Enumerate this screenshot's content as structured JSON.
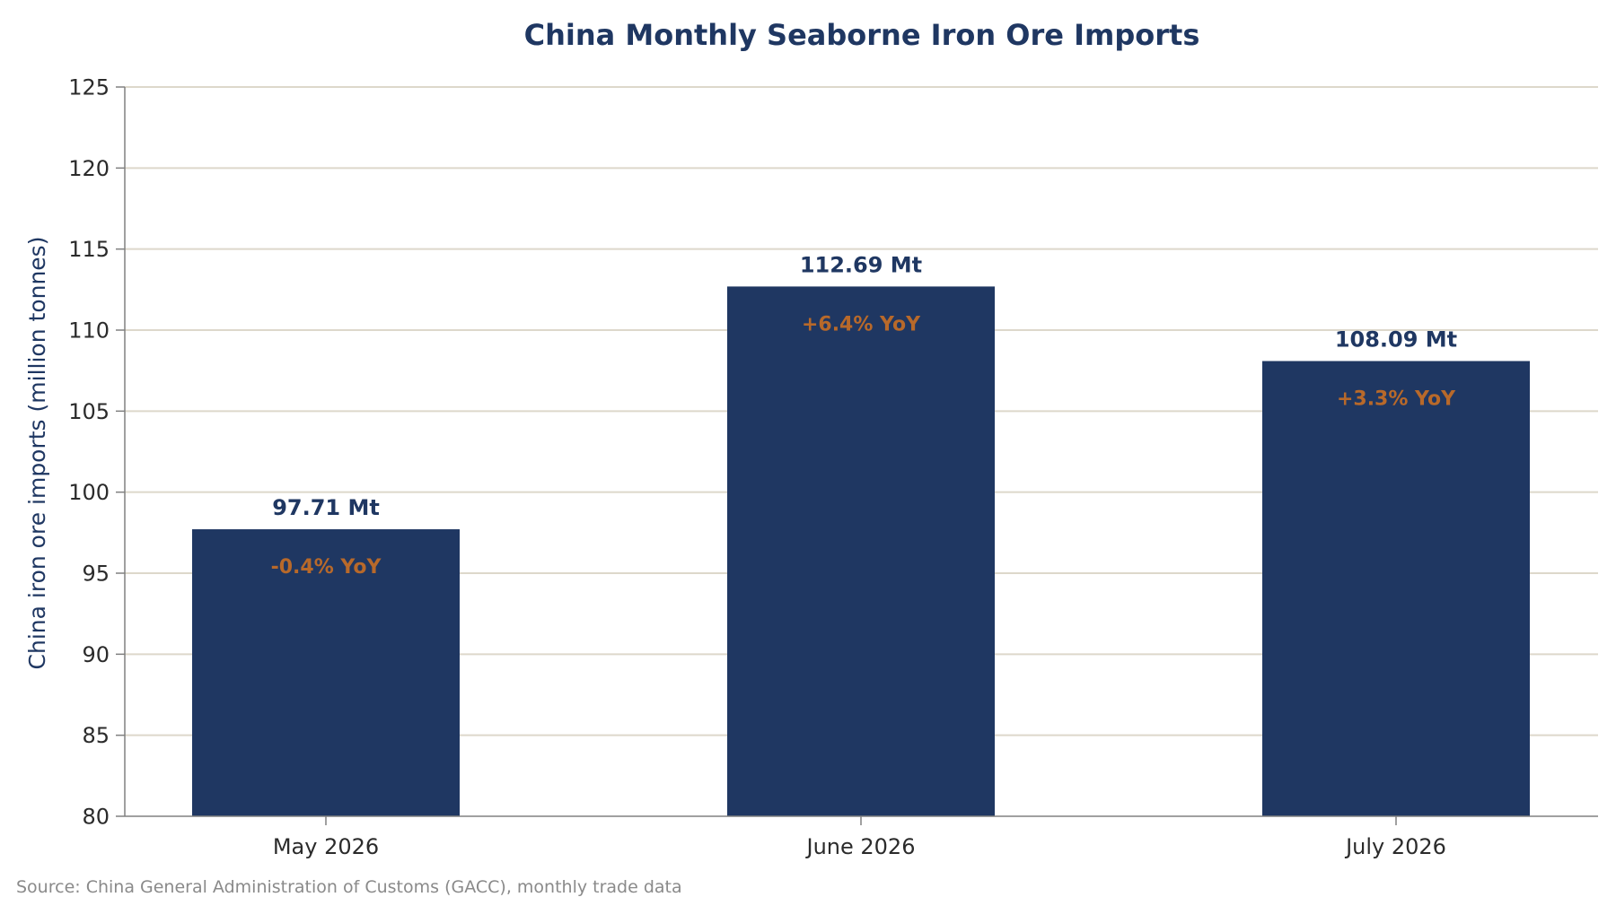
{
  "chart_data": {
    "type": "bar",
    "title": "China Monthly Seaborne Iron Ore Imports",
    "ylabel": "China iron ore imports (million tonnes)",
    "xlabel": "",
    "categories": [
      "May 2026",
      "June 2026",
      "July 2026"
    ],
    "values": [
      97.71,
      112.69,
      108.09
    ],
    "value_labels": [
      "97.71 Mt",
      "112.69 Mt",
      "108.09 Mt"
    ],
    "yoy_labels": [
      "-0.4% YoY",
      "+6.4% YoY",
      "+3.3% YoY"
    ],
    "ylim": [
      80,
      125
    ],
    "yticks": [
      80,
      85,
      90,
      95,
      100,
      105,
      110,
      115,
      120,
      125
    ],
    "grid": true,
    "source": "Source: China General Administration of Customs (GACC), monthly trade data"
  },
  "colors": {
    "bar": "#1f3762",
    "title": "#1f3762",
    "value_label": "#1f3762",
    "yoy_label": "#b8692a",
    "grid": "#ddd8cb",
    "axis": "#808080",
    "ylabel": "#1f3762",
    "source": "#8a8a8a"
  }
}
